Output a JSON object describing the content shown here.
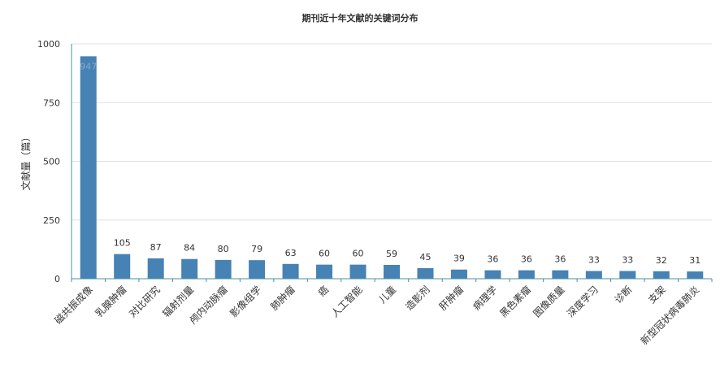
{
  "chart_data": {
    "type": "bar",
    "title": "期刊近十年文献的关键词分布",
    "ylabel": "文献量（篇）",
    "xlabel": "",
    "ylim": [
      0,
      1000
    ],
    "yticks": [
      0,
      250,
      500,
      750,
      1000
    ],
    "grid": true,
    "categories": [
      "磁共振成像",
      "乳腺肿瘤",
      "对比研究",
      "辐射剂量",
      "颅内动脉瘤",
      "影像组学",
      "肺肿瘤",
      "癌",
      "人工智能",
      "儿童",
      "造影剂",
      "肝肿瘤",
      "病理学",
      "黑色素瘤",
      "图像质量",
      "深度学习",
      "诊断",
      "支架",
      "新型冠状病毒肺炎"
    ],
    "values": [
      947,
      105,
      87,
      84,
      80,
      79,
      63,
      60,
      60,
      59,
      45,
      39,
      36,
      36,
      36,
      33,
      33,
      32,
      31
    ],
    "bar_color": "#4682b4"
  }
}
